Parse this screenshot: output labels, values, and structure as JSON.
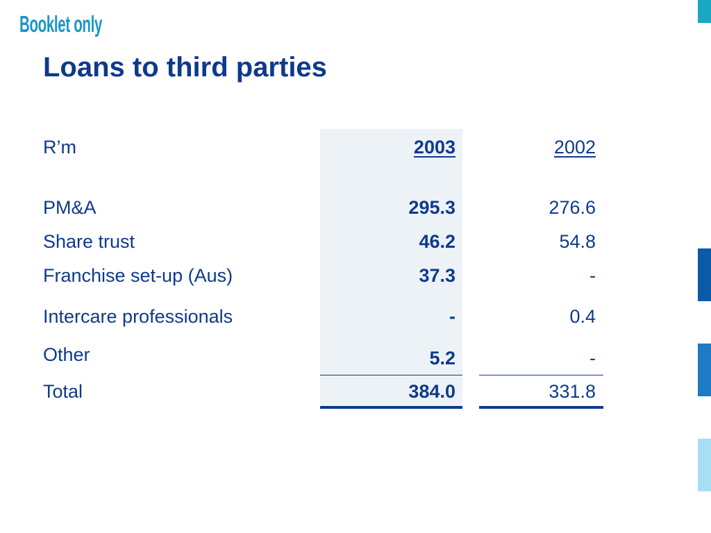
{
  "booklet_tag": "Booklet only",
  "title": "Loans to third parties",
  "table": {
    "unit_label": "R’m",
    "year_current": "2003",
    "year_prior": "2002",
    "rows": [
      {
        "label": "PM&A",
        "current": "295.3",
        "prior": "276.6"
      },
      {
        "label": "Share trust",
        "current": "46.2",
        "prior": "54.8"
      },
      {
        "label": "Franchise set-up (Aus)",
        "current": "37.3",
        "prior": "-"
      },
      {
        "label": "Intercare professionals",
        "current": "-",
        "prior": "0.4"
      },
      {
        "label": "Other",
        "current": "5.2",
        "prior": "-"
      }
    ],
    "total": {
      "label": "Total",
      "current": "384.0",
      "prior": "331.8"
    }
  },
  "colors": {
    "title": "#0e3a8c",
    "booklet_tag": "#1a96c7",
    "column_shade": "#edf2f6",
    "accent_bars": [
      "#19a7c4",
      "#0b5aa8",
      "#1e7ac4",
      "#a7def4"
    ]
  }
}
